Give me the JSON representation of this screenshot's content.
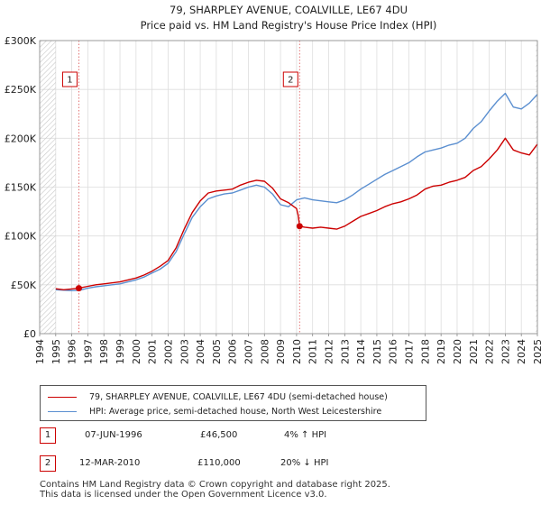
{
  "chart_data": {
    "type": "line",
    "title": "79, SHARPLEY AVENUE, COALVILLE, LE67 4DU",
    "subtitle": "Price paid vs. HM Land Registry's House Price Index (HPI)",
    "xlabel": "",
    "ylabel": "",
    "xlim": [
      1994,
      2025
    ],
    "ylim": [
      0,
      300000
    ],
    "x_ticks": [
      "1994",
      "1995",
      "1996",
      "1997",
      "1998",
      "1999",
      "2000",
      "2001",
      "2002",
      "2003",
      "2004",
      "2005",
      "2006",
      "2007",
      "2008",
      "2009",
      "2010",
      "2011",
      "2012",
      "2013",
      "2014",
      "2015",
      "2016",
      "2017",
      "2018",
      "2019",
      "2020",
      "2021",
      "2022",
      "2023",
      "2024",
      "2025"
    ],
    "y_ticks": [
      {
        "value": 0,
        "label": "£0"
      },
      {
        "value": 50000,
        "label": "£50K"
      },
      {
        "value": 100000,
        "label": "£100K"
      },
      {
        "value": 150000,
        "label": "£150K"
      },
      {
        "value": 200000,
        "label": "£200K"
      },
      {
        "value": 250000,
        "label": "£250K"
      },
      {
        "value": 300000,
        "label": "£300K"
      }
    ],
    "grid": true,
    "hatched_ranges": [
      [
        1994,
        1995
      ],
      [
        2024.9,
        2025
      ]
    ],
    "series": [
      {
        "name": "79, SHARPLEY AVENUE, COALVILLE, LE67 4DU (semi-detached house)",
        "color": "#cc0000",
        "x": [
          1995.0,
          1995.5,
          1996.0,
          1996.44,
          1997.0,
          1997.5,
          1998.0,
          1998.5,
          1999.0,
          1999.5,
          2000.0,
          2000.5,
          2001.0,
          2001.5,
          2002.0,
          2002.5,
          2003.0,
          2003.5,
          2004.0,
          2004.5,
          2005.0,
          2005.5,
          2006.0,
          2006.5,
          2007.0,
          2007.5,
          2008.0,
          2008.5,
          2009.0,
          2009.5,
          2010.0,
          2010.1,
          2010.19,
          2010.5,
          2011.0,
          2011.5,
          2012.0,
          2012.5,
          2013.0,
          2013.5,
          2014.0,
          2014.5,
          2015.0,
          2015.5,
          2016.0,
          2016.5,
          2017.0,
          2017.5,
          2018.0,
          2018.5,
          2019.0,
          2019.5,
          2020.0,
          2020.5,
          2021.0,
          2021.5,
          2022.0,
          2022.5,
          2023.0,
          2023.5,
          2024.0,
          2024.5,
          2025.0
        ],
        "y": [
          46000,
          45000,
          45800,
          46500,
          48500,
          50000,
          51000,
          52000,
          53000,
          55000,
          57000,
          60000,
          64000,
          69000,
          75000,
          88000,
          107000,
          124000,
          136000,
          144000,
          146000,
          147000,
          148000,
          152000,
          155000,
          157000,
          156000,
          149000,
          138000,
          134000,
          128000,
          121000,
          110000,
          109000,
          108000,
          109000,
          108000,
          107000,
          110000,
          115000,
          120000,
          123000,
          126000,
          130000,
          133000,
          135000,
          138000,
          142000,
          148000,
          151000,
          152000,
          155000,
          157000,
          160000,
          167000,
          171000,
          179000,
          188000,
          200000,
          188000,
          185000,
          183000,
          194000
        ]
      },
      {
        "name": "HPI: Average price, semi-detached house, North West Leicestershire",
        "color": "#5b8fd0",
        "x": [
          1995.0,
          1995.5,
          1996.0,
          1996.5,
          1997.0,
          1997.5,
          1998.0,
          1998.5,
          1999.0,
          1999.5,
          2000.0,
          2000.5,
          2001.0,
          2001.5,
          2002.0,
          2002.5,
          2003.0,
          2003.5,
          2004.0,
          2004.5,
          2005.0,
          2005.5,
          2006.0,
          2006.5,
          2007.0,
          2007.5,
          2008.0,
          2008.5,
          2009.0,
          2009.5,
          2010.0,
          2010.5,
          2011.0,
          2011.5,
          2012.0,
          2012.5,
          2013.0,
          2013.5,
          2014.0,
          2014.5,
          2015.0,
          2015.5,
          2016.0,
          2016.5,
          2017.0,
          2017.5,
          2018.0,
          2018.5,
          2019.0,
          2019.5,
          2020.0,
          2020.5,
          2021.0,
          2021.5,
          2022.0,
          2022.5,
          2023.0,
          2023.5,
          2024.0,
          2024.5,
          2025.0
        ],
        "y": [
          45000,
          44500,
          44000,
          44500,
          46500,
          48000,
          49000,
          50000,
          51000,
          53000,
          55000,
          58000,
          62000,
          66000,
          72000,
          84000,
          102000,
          119000,
          130000,
          138000,
          141000,
          143000,
          144000,
          147000,
          150000,
          152000,
          150000,
          143000,
          132000,
          130000,
          137000,
          139000,
          137000,
          136000,
          135000,
          134000,
          137000,
          142000,
          148000,
          153000,
          158000,
          163000,
          167000,
          171000,
          175000,
          181000,
          186000,
          188000,
          190000,
          193000,
          195000,
          200000,
          210000,
          217000,
          228000,
          238000,
          246000,
          232000,
          230000,
          236000,
          245000
        ]
      }
    ],
    "annotations": [
      {
        "label": "1",
        "x": 1996.44,
        "y": 46500
      },
      {
        "label": "2",
        "x": 2010.19,
        "y": 110000
      }
    ]
  },
  "legend": {
    "entries": [
      {
        "label": "79, SHARPLEY AVENUE, COALVILLE, LE67 4DU (semi-detached house)",
        "color": "#cc0000"
      },
      {
        "label": "HPI: Average price, semi-detached house, North West Leicestershire",
        "color": "#5b8fd0"
      }
    ]
  },
  "transactions": [
    {
      "num": "1",
      "date": "07-JUN-1996",
      "price": "£46,500",
      "hpi": "4% ↑ HPI"
    },
    {
      "num": "2",
      "date": "12-MAR-2010",
      "price": "£110,000",
      "hpi": "20% ↓ HPI"
    }
  ],
  "footer": {
    "line1": "Contains HM Land Registry data © Crown copyright and database right 2025.",
    "line2": "This data is licensed under the Open Government Licence v3.0."
  }
}
